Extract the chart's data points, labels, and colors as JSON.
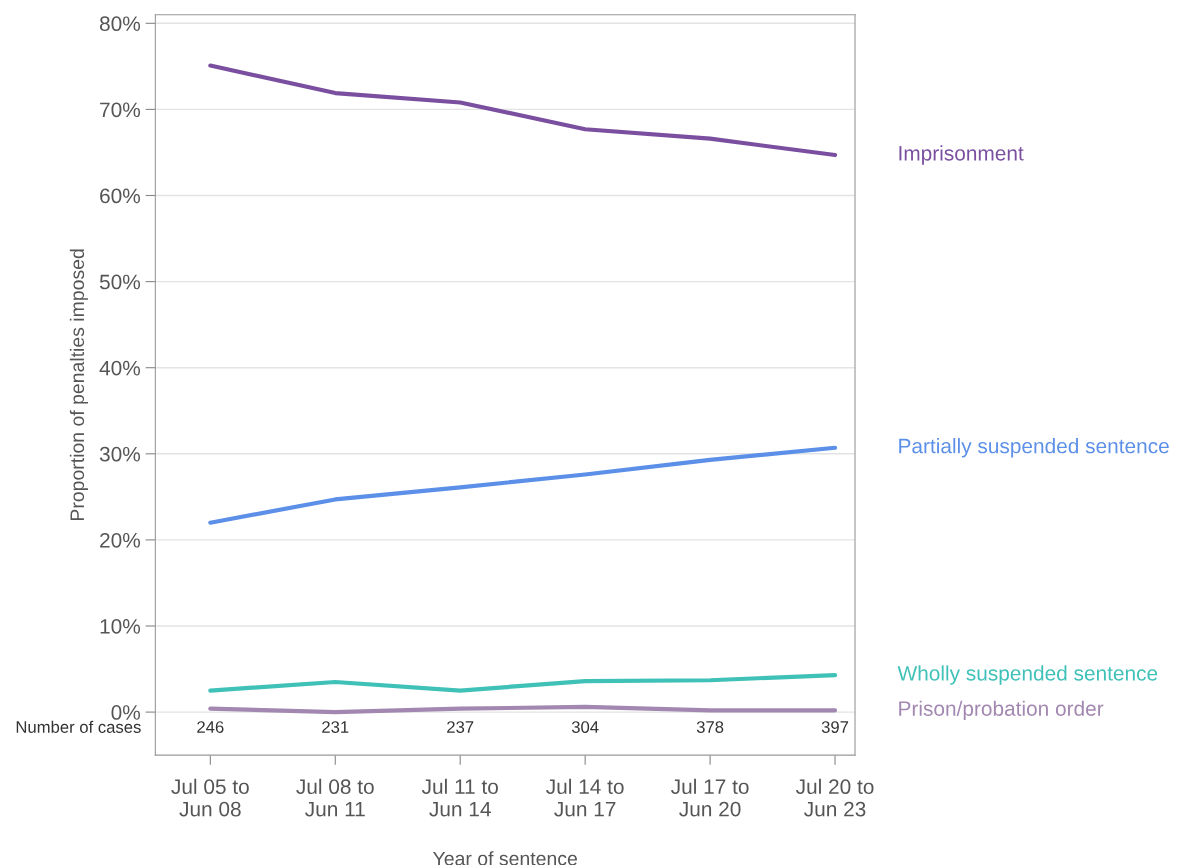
{
  "chart_data": {
    "type": "line",
    "xlabel": "Year of sentence",
    "ylabel": "Proportion of penalties imposed",
    "categories": [
      "Jul 05 to\nJun 08",
      "Jul 08 to\nJun 11",
      "Jul 11 to\nJun 14",
      "Jul 14 to\nJun 17",
      "Jul 17 to\nJun 20",
      "Jul 20 to\nJun 23"
    ],
    "series": [
      {
        "name": "Imprisonment",
        "color": "#7b4fa0",
        "values": [
          75.1,
          71.9,
          70.8,
          67.7,
          66.6,
          64.7
        ]
      },
      {
        "name": "Partially suspended sentence",
        "color": "#5b8fe8",
        "values": [
          22.0,
          24.7,
          26.1,
          27.6,
          29.3,
          30.7
        ]
      },
      {
        "name": "Wholly suspended sentence",
        "color": "#3fc1b8",
        "values": [
          2.5,
          3.5,
          2.5,
          3.6,
          3.7,
          4.3
        ]
      },
      {
        "name": "Prison/probation order",
        "color": "#a287b0",
        "values": [
          0.4,
          0.0,
          0.4,
          0.6,
          0.2,
          0.2
        ]
      }
    ],
    "ylim": [
      -5,
      81
    ],
    "yticks": [
      {
        "value": 0,
        "label": "0%"
      },
      {
        "value": 10,
        "label": "10%"
      },
      {
        "value": 20,
        "label": "20%"
      },
      {
        "value": 30,
        "label": "30%"
      },
      {
        "value": 40,
        "label": "40%"
      },
      {
        "value": 50,
        "label": "50%"
      },
      {
        "value": 60,
        "label": "60%"
      },
      {
        "value": 70,
        "label": "70%"
      },
      {
        "value": 80,
        "label": "80%"
      }
    ],
    "grid": "y",
    "legend": false,
    "annotations": [
      "Number of cases",
      "246",
      "231",
      "237",
      "304",
      "378",
      "397"
    ]
  }
}
